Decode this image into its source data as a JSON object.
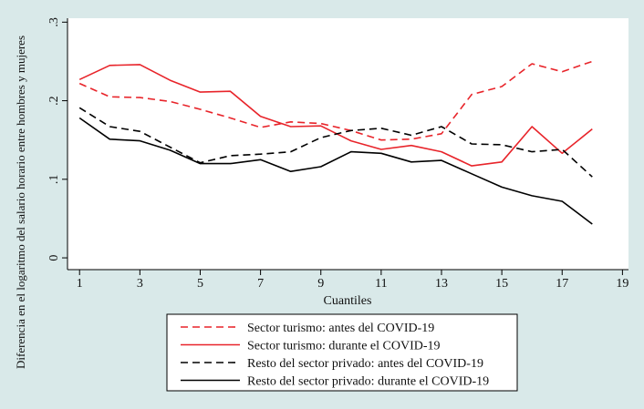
{
  "chart_data": {
    "type": "line",
    "title": "",
    "xlabel": "Cuantiles",
    "ylabel": "Diferencia en el logaritmo del salario horario entre hombres y mujeres",
    "xlim": [
      0.6,
      19.2
    ],
    "ylim": [
      -0.015,
      0.305
    ],
    "xticks": [
      1,
      3,
      5,
      7,
      9,
      11,
      13,
      15,
      17,
      19
    ],
    "xtick_labels": [
      "1",
      "3",
      "5",
      "7",
      "9",
      "11",
      "13",
      "15",
      "17",
      "19"
    ],
    "yticks": [
      0,
      0.1,
      0.2,
      0.3
    ],
    "ytick_labels": [
      "0",
      ".1",
      ".2",
      ".3"
    ],
    "grid": false,
    "legend_position": "bottom",
    "x": [
      1,
      2,
      3,
      4,
      5,
      6,
      7,
      8,
      9,
      10,
      11,
      12,
      13,
      14,
      15,
      16,
      17,
      18
    ],
    "series": [
      {
        "name": "Sector turismo: antes del COVID-19",
        "color": "#e8242a",
        "dash": "dashed",
        "values": [
          0.222,
          0.205,
          0.204,
          0.199,
          0.189,
          0.178,
          0.166,
          0.173,
          0.171,
          0.162,
          0.15,
          0.151,
          0.158,
          0.208,
          0.218,
          0.247,
          0.237,
          0.25
        ]
      },
      {
        "name": "Sector turismo: durante el COVID-19",
        "color": "#e8242a",
        "dash": "solid",
        "values": [
          0.227,
          0.245,
          0.246,
          0.226,
          0.211,
          0.212,
          0.18,
          0.167,
          0.168,
          0.149,
          0.138,
          0.143,
          0.135,
          0.117,
          0.122,
          0.167,
          0.133,
          0.164
        ]
      },
      {
        "name": "Resto del sector privado: antes del COVID-19",
        "color": "#000000",
        "dash": "dashed",
        "values": [
          0.191,
          0.167,
          0.161,
          0.141,
          0.121,
          0.13,
          0.132,
          0.135,
          0.153,
          0.162,
          0.165,
          0.156,
          0.167,
          0.145,
          0.144,
          0.135,
          0.138,
          0.103
        ]
      },
      {
        "name": "Resto del sector privado: durante el COVID-19",
        "color": "#000000",
        "dash": "solid",
        "values": [
          0.178,
          0.151,
          0.149,
          0.137,
          0.12,
          0.12,
          0.125,
          0.11,
          0.116,
          0.135,
          0.133,
          0.122,
          0.124,
          0.107,
          0.09,
          0.079,
          0.072,
          0.043
        ]
      }
    ]
  }
}
